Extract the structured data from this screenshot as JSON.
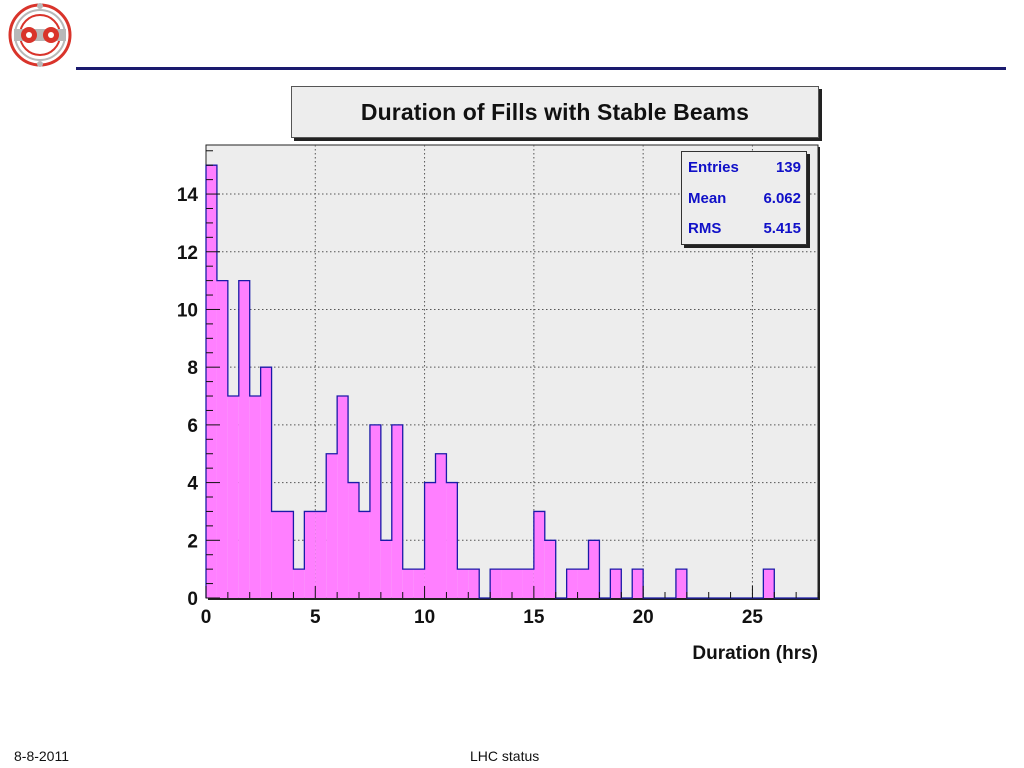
{
  "footer": {
    "date": "8-8-2011",
    "title": "LHC status"
  },
  "logo": {
    "icon": "lhc-dipole-cross-section-logo",
    "colors": [
      "#d9342b",
      "#b8b8b8"
    ]
  },
  "colors": {
    "bar_fill": "#ff7fff",
    "bar_edge": "#1a1aa8",
    "rule": "#1a1a6e",
    "stats_text": "#1010c8"
  },
  "chart_data": {
    "type": "bar",
    "title": "Duration of Fills with Stable Beams",
    "xlabel": "Duration (hrs)",
    "ylabel": "",
    "xlim": [
      0,
      28
    ],
    "ylim": [
      0,
      15.7
    ],
    "bin_width": 0.5,
    "x_ticks": [
      0,
      5,
      10,
      15,
      20,
      25
    ],
    "y_ticks": [
      0,
      2,
      4,
      6,
      8,
      10,
      12,
      14
    ],
    "grid": true,
    "series": [
      {
        "values": [
          15,
          11,
          7,
          11,
          7,
          8,
          3,
          3,
          1,
          3,
          3,
          5,
          7,
          4,
          3,
          6,
          2,
          6,
          1,
          1,
          4,
          5,
          4,
          1,
          1,
          0,
          1,
          1,
          1,
          1,
          3,
          2,
          0,
          1,
          1,
          2,
          0,
          1,
          0,
          1,
          0,
          0,
          0,
          1,
          0,
          0,
          0,
          0,
          0,
          0,
          0,
          1,
          0,
          0,
          0,
          0
        ]
      }
    ],
    "stats": [
      {
        "label": "Entries",
        "value": "139"
      },
      {
        "label": "Mean",
        "value": "6.062"
      },
      {
        "label": "RMS",
        "value": "5.415"
      }
    ],
    "stats_placement": "top-right"
  }
}
